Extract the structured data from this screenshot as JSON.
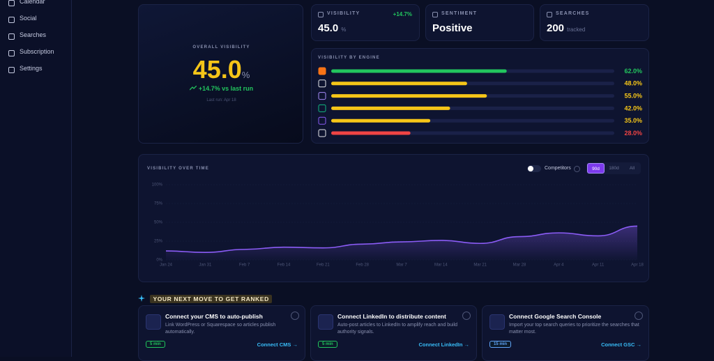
{
  "sidebar": {
    "items": [
      "Calendar",
      "Social",
      "Searches",
      "Subscription",
      "Settings"
    ]
  },
  "overview": {
    "label": "OVERALL VISIBILITY",
    "value": "45.0",
    "unit": "%",
    "change": "+14.7% vs last run",
    "last_run": "Last run: Apr 18"
  },
  "stats": [
    {
      "label": "VISIBILITY",
      "value": "45.0",
      "unit": "%",
      "change": "+14.7%"
    },
    {
      "label": "SENTIMENT",
      "value": "Positive"
    },
    {
      "label": "SEARCHES",
      "value": "200",
      "unit": "tracked"
    }
  ],
  "chart_data": [
    {
      "type": "bar",
      "title": "VISIBILITY BY ENGINE",
      "values": [
        62.0,
        48.0,
        55.0,
        42.0,
        35.0,
        28.0
      ],
      "value_labels": [
        "62.0%",
        "48.0%",
        "55.0%",
        "42.0%",
        "35.0%",
        "28.0%"
      ],
      "colors": [
        "#22c55e",
        "#f5c518",
        "#f5c518",
        "#f5c518",
        "#f5c518",
        "#ef4444"
      ],
      "xlim": [
        0,
        100
      ]
    },
    {
      "type": "line",
      "title": "VISIBILITY OVER TIME",
      "categories": [
        "Jan 24",
        "Jan 31",
        "Feb 7",
        "Feb 14",
        "Feb 21",
        "Feb 28",
        "Mar 7",
        "Mar 14",
        "Mar 21",
        "Mar 28",
        "Apr 4",
        "Apr 11",
        "Apr 18"
      ],
      "values": [
        12,
        10,
        14,
        17,
        16,
        21,
        24,
        26,
        22,
        31,
        36,
        32,
        45
      ],
      "color": "#8b5cf6",
      "ylim": [
        0,
        100
      ],
      "yticks": [
        {
          "value": 0,
          "label": "0%"
        },
        {
          "value": 25,
          "label": "25%"
        },
        {
          "value": 50,
          "label": "50%"
        },
        {
          "value": 75,
          "label": "75%"
        },
        {
          "value": 100,
          "label": "100%"
        }
      ],
      "grid": true
    }
  ],
  "controls": {
    "toggle": "Competitors",
    "ranges": [
      "90d",
      "180d",
      "All"
    ]
  },
  "next_moves": {
    "title": "YOUR NEXT MOVE TO GET RANKED",
    "cards": [
      {
        "title": "Connect your CMS to auto-publish",
        "description": "Link WordPress or Squarespace so articles publish automatically.",
        "time": "5 min",
        "action": "Connect CMS →"
      },
      {
        "title": "Connect LinkedIn to distribute content",
        "description": "Auto-post articles to LinkedIn to amplify reach and build authority signals.",
        "time": "5 min",
        "action": "Connect LinkedIn →"
      },
      {
        "title": "Connect Google Search Console",
        "description": "Import your top search queries to prioritize the searches that matter most.",
        "time": "15 min",
        "action": "Connect GSC →"
      }
    ]
  }
}
